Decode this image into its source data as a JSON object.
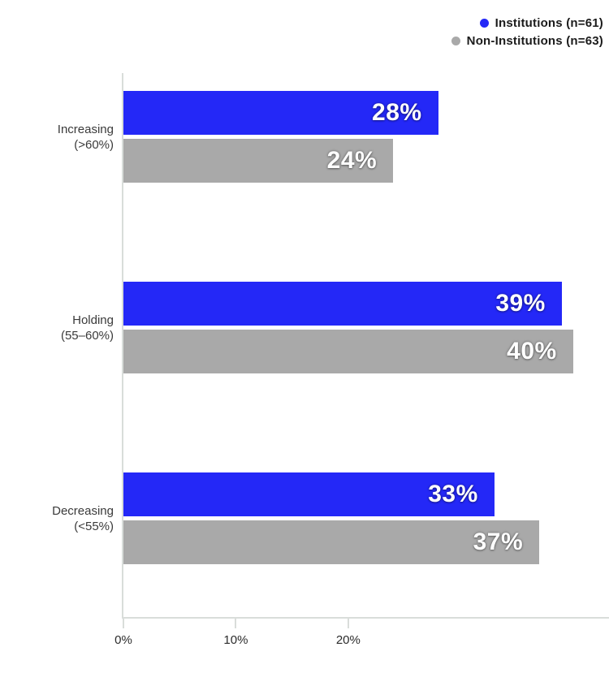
{
  "chart_data": {
    "type": "bar",
    "orientation": "horizontal",
    "title": "",
    "categories": [
      {
        "line1": "Increasing",
        "line2": "(>60%)"
      },
      {
        "line1": "Holding",
        "line2": "(55–60%)"
      },
      {
        "line1": "Decreasing",
        "line2": "(<55%)"
      }
    ],
    "series": [
      {
        "name": "Institutions (n=61)",
        "color": "#2428f7",
        "values": [
          28,
          39,
          33
        ],
        "value_labels": [
          "28%",
          "39%",
          "33%"
        ]
      },
      {
        "name": "Non-Institutions (n=63)",
        "color": "#a9a9a9",
        "values": [
          24,
          40,
          37
        ],
        "value_labels": [
          "24%",
          "40%",
          "37%"
        ]
      }
    ],
    "x_axis": {
      "tick_values": [
        0,
        10,
        20
      ],
      "tick_labels": [
        "0%",
        "10%",
        "20%"
      ],
      "axis_max": 43.2,
      "unit": "%"
    },
    "legend_position": "top-right",
    "grid": false,
    "value_label_color": "#ffffff",
    "axis_line_color": "#d9ddda",
    "background_color": "#ffffff"
  }
}
